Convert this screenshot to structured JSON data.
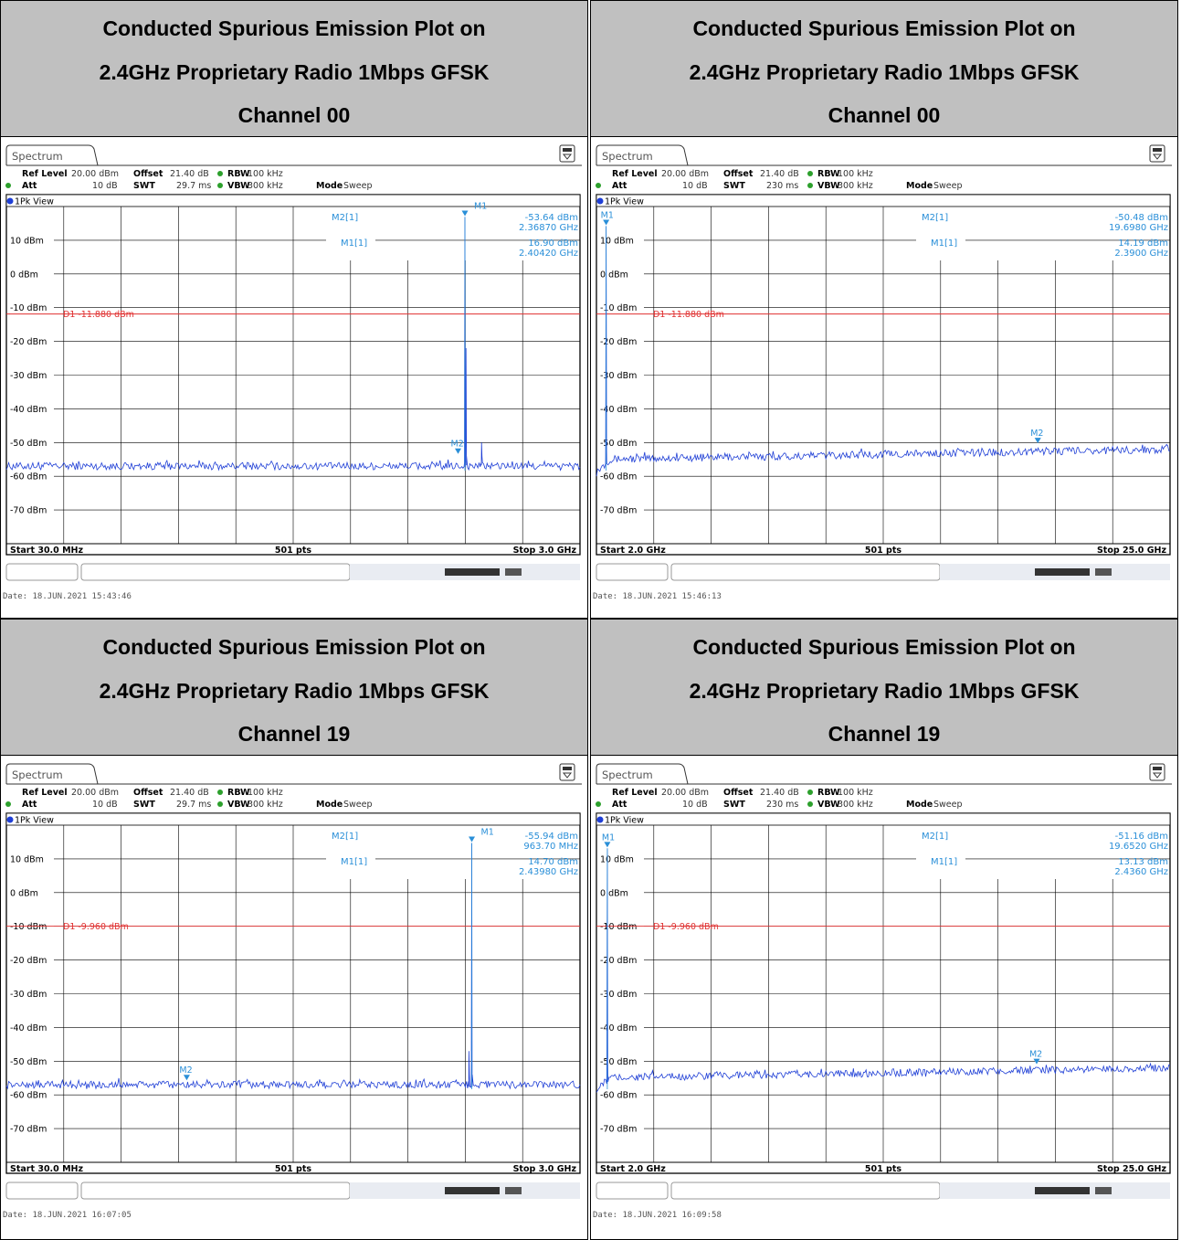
{
  "panels": [
    {
      "title_line1": "Conducted Spurious Emission Plot on",
      "title_line2": "2.4GHz Proprietary Radio 1Mbps GFSK",
      "title_line3": "Channel 00",
      "tab": "Spectrum",
      "ref_level_label": "Ref Level",
      "ref_level": "20.00 dBm",
      "offset_label": "Offset",
      "offset": "21.40 dB",
      "rbw_label": "RBW",
      "rbw": "100 kHz",
      "att_label": "Att",
      "att": "10 dB",
      "swt_label": "SWT",
      "swt": "29.7 ms",
      "vbw_label": "VBW",
      "vbw": "300 kHz",
      "mode_label": "Mode",
      "mode": "Sweep",
      "trace_label": "1Pk View",
      "m2_label": "M2[1]",
      "m2_level": "-53.64 dBm",
      "m2_freq": "2.36870 GHz",
      "m1_label": "M1[1]",
      "m1_level": "16.90 dBm",
      "m1_freq": "2.40420 GHz",
      "display_line": "D1 -11.880 dBm",
      "start": "Start 30.0 MHz",
      "points": "501 pts",
      "stop": "Stop 3.0 GHz",
      "date": "Date: 18.JUN.2021  15:43:46",
      "y_ticks": [
        "10 dBm",
        "0 dBm",
        "-10 dBm",
        "-20 dBm",
        "-30 dBm",
        "-40 dBm",
        "-50 dBm",
        "-60 dBm",
        "-70 dBm"
      ],
      "marker_tag_m1": "M1",
      "marker_tag_m2": "M2",
      "chart_data": {
        "type": "line",
        "x_range_ghz": [
          0.03,
          3.0
        ],
        "ylim": [
          -80,
          20
        ],
        "noise_floor_dbm": -57,
        "display_line_dbm": -11.88,
        "markers": [
          {
            "name": "M1",
            "x_ghz": 2.4042,
            "y_dbm": 16.9
          },
          {
            "name": "M2",
            "x_ghz": 2.3687,
            "y_dbm": -53.64
          }
        ],
        "peaks": [
          {
            "x_ghz": 2.4042,
            "y_dbm": 16.9
          },
          {
            "x_ghz": 2.41,
            "y_dbm": -22
          },
          {
            "x_ghz": 2.49,
            "y_dbm": -50
          }
        ],
        "floor_bumps": []
      }
    },
    {
      "title_line1": "Conducted Spurious Emission Plot on",
      "title_line2": "2.4GHz Proprietary Radio 1Mbps GFSK",
      "title_line3": "Channel 00",
      "tab": "Spectrum",
      "ref_level_label": "Ref Level",
      "ref_level": "20.00 dBm",
      "offset_label": "Offset",
      "offset": "21.40 dB",
      "rbw_label": "RBW",
      "rbw": "100 kHz",
      "att_label": "Att",
      "att": "10 dB",
      "swt_label": "SWT",
      "swt": "230 ms",
      "vbw_label": "VBW",
      "vbw": "300 kHz",
      "mode_label": "Mode",
      "mode": "Sweep",
      "trace_label": "1Pk View",
      "m2_label": "M2[1]",
      "m2_level": "-50.48 dBm",
      "m2_freq": "19.6980 GHz",
      "m1_label": "M1[1]",
      "m1_level": "14.19 dBm",
      "m1_freq": "2.3900 GHz",
      "display_line": "D1 -11.880 dBm",
      "start": "Start 2.0 GHz",
      "points": "501 pts",
      "stop": "Stop 25.0 GHz",
      "date": "Date: 18.JUN.2021  15:46:13",
      "y_ticks": [
        "10 dBm",
        "0 dBm",
        "-10 dBm",
        "-20 dBm",
        "-30 dBm",
        "-40 dBm",
        "-50 dBm",
        "-60 dBm",
        "-70 dBm"
      ],
      "marker_tag_m1": "M1",
      "marker_tag_m2": "M2",
      "chart_data": {
        "type": "line",
        "x_range_ghz": [
          2.0,
          25.0
        ],
        "ylim": [
          -80,
          20
        ],
        "noise_floor_dbm": -55,
        "floor_slope_db": 3,
        "display_line_dbm": -11.88,
        "markers": [
          {
            "name": "M1",
            "x_ghz": 2.39,
            "y_dbm": 14.19
          },
          {
            "name": "M2",
            "x_ghz": 19.698,
            "y_dbm": -50.48
          }
        ],
        "peaks": [
          {
            "x_ghz": 2.39,
            "y_dbm": 14.19
          }
        ],
        "floor_bumps": [
          {
            "x_ghz": 19.698,
            "y_dbm": -50.48
          }
        ]
      }
    },
    {
      "title_line1": "Conducted Spurious Emission Plot on",
      "title_line2": "2.4GHz Proprietary Radio 1Mbps GFSK",
      "title_line3": "Channel 19",
      "tab": "Spectrum",
      "ref_level_label": "Ref Level",
      "ref_level": "20.00 dBm",
      "offset_label": "Offset",
      "offset": "21.40 dB",
      "rbw_label": "RBW",
      "rbw": "100 kHz",
      "att_label": "Att",
      "att": "10 dB",
      "swt_label": "SWT",
      "swt": "29.7 ms",
      "vbw_label": "VBW",
      "vbw": "300 kHz",
      "mode_label": "Mode",
      "mode": "Sweep",
      "trace_label": "1Pk View",
      "m2_label": "M2[1]",
      "m2_level": "-55.94 dBm",
      "m2_freq": "963.70 MHz",
      "m1_label": "M1[1]",
      "m1_level": "14.70 dBm",
      "m1_freq": "2.43980 GHz",
      "display_line": "D1 -9.960 dBm",
      "start": "Start 30.0 MHz",
      "points": "501 pts",
      "stop": "Stop 3.0 GHz",
      "date": "Date: 18.JUN.2021  16:07:05",
      "y_ticks": [
        "10 dBm",
        "0 dBm",
        "-10 dBm",
        "-20 dBm",
        "-30 dBm",
        "-40 dBm",
        "-50 dBm",
        "-60 dBm",
        "-70 dBm"
      ],
      "marker_tag_m1": "M1",
      "marker_tag_m2": "M2",
      "chart_data": {
        "type": "line",
        "x_range_ghz": [
          0.03,
          3.0
        ],
        "ylim": [
          -80,
          20
        ],
        "noise_floor_dbm": -57,
        "display_line_dbm": -9.96,
        "markers": [
          {
            "name": "M1",
            "x_ghz": 2.4398,
            "y_dbm": 14.7
          },
          {
            "name": "M2",
            "x_ghz": 0.9637,
            "y_dbm": -55.94
          }
        ],
        "peaks": [
          {
            "x_ghz": 2.4398,
            "y_dbm": 14.7
          },
          {
            "x_ghz": 2.425,
            "y_dbm": -47
          }
        ],
        "floor_bumps": []
      }
    },
    {
      "title_line1": "Conducted Spurious Emission Plot on",
      "title_line2": "2.4GHz Proprietary Radio 1Mbps GFSK",
      "title_line3": "Channel 19",
      "tab": "Spectrum",
      "ref_level_label": "Ref Level",
      "ref_level": "20.00 dBm",
      "offset_label": "Offset",
      "offset": "21.40 dB",
      "rbw_label": "RBW",
      "rbw": "100 kHz",
      "att_label": "Att",
      "att": "10 dB",
      "swt_label": "SWT",
      "swt": "230 ms",
      "vbw_label": "VBW",
      "vbw": "300 kHz",
      "mode_label": "Mode",
      "mode": "Sweep",
      "trace_label": "1Pk View",
      "m2_label": "M2[1]",
      "m2_level": "-51.16 dBm",
      "m2_freq": "19.6520 GHz",
      "m1_label": "M1[1]",
      "m1_level": "13.13 dBm",
      "m1_freq": "2.4360 GHz",
      "display_line": "D1 -9.960 dBm",
      "start": "Start 2.0 GHz",
      "points": "501 pts",
      "stop": "Stop 25.0 GHz",
      "date": "Date: 18.JUN.2021  16:09:58",
      "y_ticks": [
        "10 dBm",
        "0 dBm",
        "-10 dBm",
        "-20 dBm",
        "-30 dBm",
        "-40 dBm",
        "-50 dBm",
        "-60 dBm",
        "-70 dBm"
      ],
      "marker_tag_m1": "M1",
      "marker_tag_m2": "M2",
      "chart_data": {
        "type": "line",
        "x_range_ghz": [
          2.0,
          25.0
        ],
        "ylim": [
          -80,
          20
        ],
        "noise_floor_dbm": -55,
        "floor_slope_db": 3,
        "display_line_dbm": -9.96,
        "markers": [
          {
            "name": "M1",
            "x_ghz": 2.436,
            "y_dbm": 13.13
          },
          {
            "name": "M2",
            "x_ghz": 19.652,
            "y_dbm": -51.16
          }
        ],
        "peaks": [
          {
            "x_ghz": 2.436,
            "y_dbm": 13.13
          }
        ],
        "floor_bumps": [
          {
            "x_ghz": 19.652,
            "y_dbm": -51.16
          }
        ]
      }
    }
  ],
  "colors": {
    "trace": "#1f3fd6",
    "marker": "#2a8fd8",
    "display_line": "#e03030",
    "grid": "#000000",
    "header_bg": "#c0c0c0"
  }
}
